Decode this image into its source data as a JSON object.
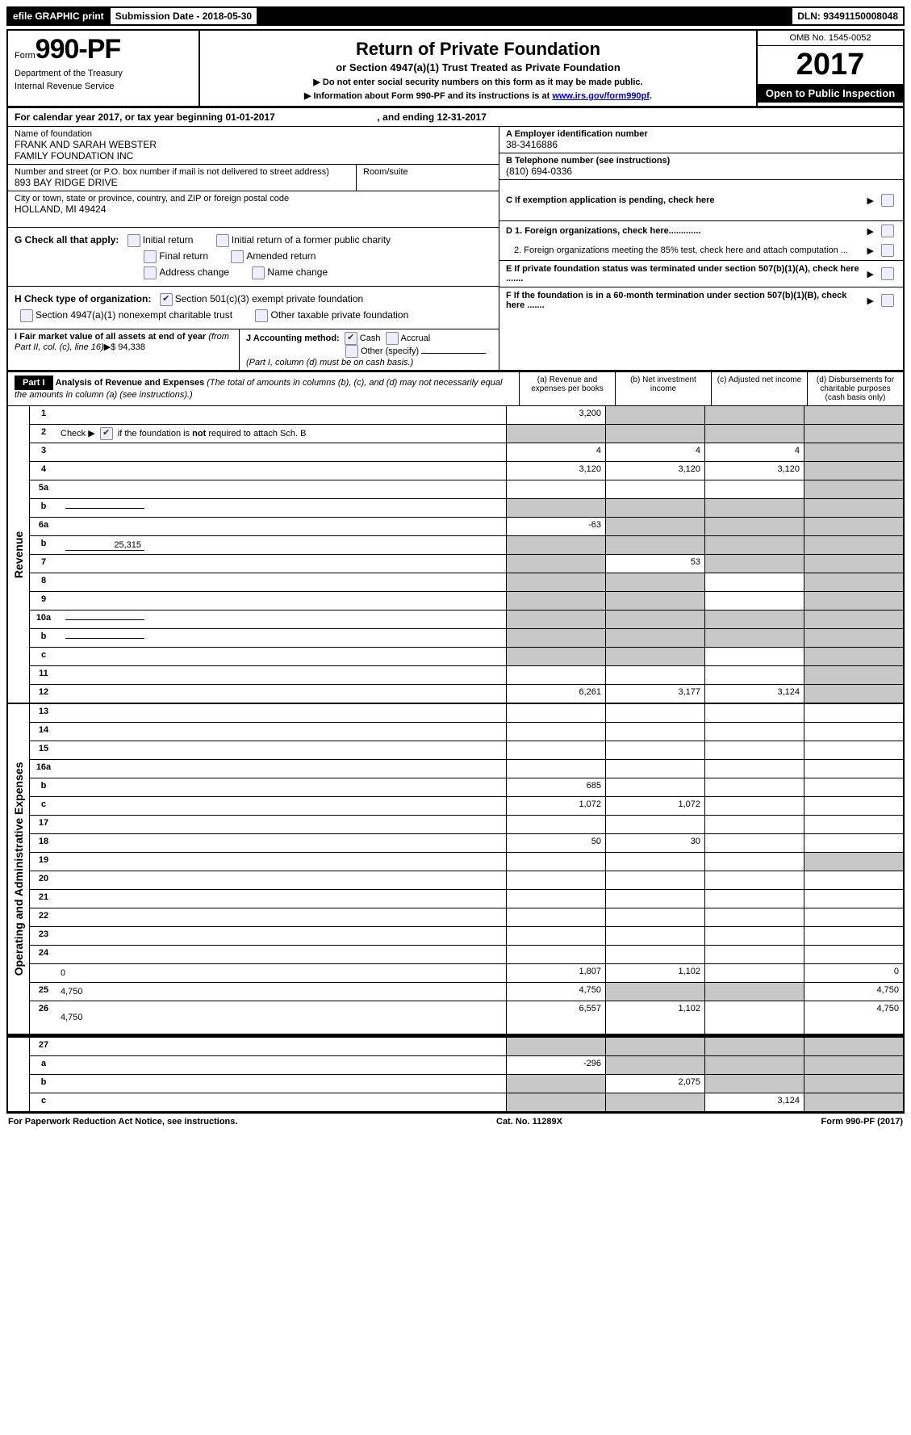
{
  "topbar": {
    "efile": "efile GRAPHIC print",
    "submission_label": "Submission Date - 2018-05-30",
    "dln_label": "DLN: 93491150008048"
  },
  "header": {
    "form_prefix": "Form",
    "form_number": "990-PF",
    "dept1": "Department of the Treasury",
    "dept2": "Internal Revenue Service",
    "title": "Return of Private Foundation",
    "subtitle": "or Section 4947(a)(1) Trust Treated as Private Foundation",
    "warn1": "▶ Do not enter social security numbers on this form as it may be made public.",
    "warn2_pre": "▶ Information about Form 990-PF and its instructions is at ",
    "warn2_link": "www.irs.gov/form990pf",
    "warn2_post": ".",
    "omb": "OMB No. 1545-0052",
    "year": "2017",
    "open": "Open to Public Inspection"
  },
  "cal_year": {
    "text_a": "For calendar year 2017, or tax year beginning 01-01-2017",
    "text_b": ", and ending 12-31-2017"
  },
  "entity": {
    "name_label": "Name of foundation",
    "name_val": "FRANK AND SARAH WEBSTER\nFAMILY FOUNDATION INC",
    "street_label": "Number and street (or P.O. box number if mail is not delivered to street address)",
    "street_val": "893 BAY RIDGE DRIVE",
    "room_label": "Room/suite",
    "city_label": "City or town, state or province, country, and ZIP or foreign postal code",
    "city_val": "HOLLAND, MI  49424"
  },
  "rightinfo": {
    "a_label": "A Employer identification number",
    "a_val": "38-3416886",
    "b_label": "B Telephone number (see instructions)",
    "b_val": "(810) 694-0336",
    "c_label": "C  If exemption application is pending, check here",
    "d1": "D 1. Foreign organizations, check here.............",
    "d2": "2. Foreign organizations meeting the 85% test, check here and attach computation ...",
    "e": "E  If private foundation status was terminated under section 507(b)(1)(A), check here .......",
    "f": "F  If the foundation is in a 60-month termination under section 507(b)(1)(B), check here ......."
  },
  "g": {
    "label": "G Check all that apply:",
    "opts": [
      "Initial return",
      "Initial return of a former public charity",
      "Final return",
      "Amended return",
      "Address change",
      "Name change"
    ]
  },
  "h": {
    "label": "H Check type of organization:",
    "opt1": "Section 501(c)(3) exempt private foundation",
    "opt2": "Section 4947(a)(1) nonexempt charitable trust",
    "opt3": "Other taxable private foundation"
  },
  "i": {
    "label": "I Fair market value of all assets at end of year ",
    "ital": "(from Part II, col. (c), line 16)",
    "arrow": "▶$",
    "val": "94,338"
  },
  "j": {
    "label": "J Accounting method:",
    "cash": "Cash",
    "accrual": "Accrual",
    "other": "Other (specify)",
    "note": "(Part I, column (d) must be on cash basis.)"
  },
  "part1": {
    "badge": "Part I",
    "title": "Analysis of Revenue and Expenses ",
    "note": "(The total of amounts in columns (b), (c), and (d) may not necessarily equal the amounts in column (a) (see instructions).)",
    "cols": {
      "a": "(a)    Revenue and expenses per books",
      "b": "(b)    Net investment income",
      "c": "(c)    Adjusted net income",
      "d": "(d)    Disbursements for charitable purposes (cash basis only)"
    }
  },
  "side_labels": {
    "revenue": "Revenue",
    "expenses": "Operating and Administrative Expenses"
  },
  "rows": [
    {
      "n": "1",
      "d": "",
      "a": "3,200",
      "b": "",
      "c": "",
      "grey": [
        "b",
        "c",
        "d"
      ]
    },
    {
      "n": "2",
      "d": "",
      "a": "",
      "b": "",
      "c": "",
      "grey": [
        "a",
        "b",
        "c",
        "d"
      ],
      "nocells": false,
      "checkbox": true
    },
    {
      "n": "3",
      "d": "",
      "a": "4",
      "b": "4",
      "c": "4",
      "grey": [
        "d"
      ]
    },
    {
      "n": "4",
      "d": "",
      "a": "3,120",
      "b": "3,120",
      "c": "3,120",
      "grey": [
        "d"
      ]
    },
    {
      "n": "5a",
      "d": "",
      "a": "",
      "b": "",
      "c": "",
      "grey": [
        "d"
      ]
    },
    {
      "n": "b",
      "d": "",
      "a": "",
      "b": "",
      "c": "",
      "grey": [
        "a",
        "b",
        "c",
        "d"
      ],
      "subinput": true
    },
    {
      "n": "6a",
      "d": "",
      "a": "-63",
      "b": "",
      "c": "",
      "grey": [
        "b",
        "c",
        "d"
      ]
    },
    {
      "n": "b",
      "d": "",
      "a": "",
      "b": "",
      "c": "",
      "grey": [
        "a",
        "b",
        "c",
        "d"
      ],
      "subinput": true,
      "subval": "25,315"
    },
    {
      "n": "7",
      "d": "",
      "a": "",
      "b": "53",
      "c": "",
      "grey": [
        "a",
        "c",
        "d"
      ]
    },
    {
      "n": "8",
      "d": "",
      "a": "",
      "b": "",
      "c": "",
      "grey": [
        "a",
        "b",
        "d"
      ]
    },
    {
      "n": "9",
      "d": "",
      "a": "",
      "b": "",
      "c": "",
      "grey": [
        "a",
        "b",
        "d"
      ]
    },
    {
      "n": "10a",
      "d": "",
      "a": "",
      "b": "",
      "c": "",
      "grey": [
        "a",
        "b",
        "c",
        "d"
      ],
      "subinput": true
    },
    {
      "n": "b",
      "d": "",
      "a": "",
      "b": "",
      "c": "",
      "grey": [
        "a",
        "b",
        "c",
        "d"
      ],
      "subinput": true
    },
    {
      "n": "c",
      "d": "",
      "a": "",
      "b": "",
      "c": "",
      "grey": [
        "a",
        "b",
        "d"
      ]
    },
    {
      "n": "11",
      "d": "",
      "a": "",
      "b": "",
      "c": "",
      "grey": [
        "d"
      ]
    },
    {
      "n": "12",
      "d": "",
      "a": "6,261",
      "b": "3,177",
      "c": "3,124",
      "grey": [
        "d"
      ],
      "bold": true
    }
  ],
  "rows2": [
    {
      "n": "13",
      "d": "",
      "a": "",
      "b": "",
      "c": ""
    },
    {
      "n": "14",
      "d": "",
      "a": "",
      "b": "",
      "c": ""
    },
    {
      "n": "15",
      "d": "",
      "a": "",
      "b": "",
      "c": ""
    },
    {
      "n": "16a",
      "d": "",
      "a": "",
      "b": "",
      "c": ""
    },
    {
      "n": "b",
      "d": "",
      "a": "685",
      "b": "",
      "c": ""
    },
    {
      "n": "c",
      "d": "",
      "a": "1,072",
      "b": "1,072",
      "c": ""
    },
    {
      "n": "17",
      "d": "",
      "a": "",
      "b": "",
      "c": ""
    },
    {
      "n": "18",
      "d": "",
      "a": "50",
      "b": "30",
      "c": ""
    },
    {
      "n": "19",
      "d": "",
      "a": "",
      "b": "",
      "c": "",
      "grey": [
        "d"
      ]
    },
    {
      "n": "20",
      "d": "",
      "a": "",
      "b": "",
      "c": ""
    },
    {
      "n": "21",
      "d": "",
      "a": "",
      "b": "",
      "c": ""
    },
    {
      "n": "22",
      "d": "",
      "a": "",
      "b": "",
      "c": ""
    },
    {
      "n": "23",
      "d": "",
      "a": "",
      "b": "",
      "c": ""
    },
    {
      "n": "24",
      "d": "",
      "a": "",
      "b": "",
      "c": "",
      "nocellborder": true
    },
    {
      "n": "",
      "d": "0",
      "a": "1,807",
      "b": "1,102",
      "c": ""
    },
    {
      "n": "25",
      "d": "4,750",
      "a": "4,750",
      "b": "",
      "c": "",
      "grey": [
        "b",
        "c"
      ]
    },
    {
      "n": "26",
      "d": "4,750",
      "a": "6,557",
      "b": "1,102",
      "c": "",
      "tall": true
    }
  ],
  "rows3": [
    {
      "n": "27",
      "d": "",
      "a": "",
      "b": "",
      "c": "",
      "grey": [
        "a",
        "b",
        "c",
        "d"
      ]
    },
    {
      "n": "a",
      "d": "",
      "a": "-296",
      "b": "",
      "c": "",
      "grey": [
        "b",
        "c",
        "d"
      ]
    },
    {
      "n": "b",
      "d": "",
      "a": "",
      "b": "2,075",
      "c": "",
      "grey": [
        "a",
        "c",
        "d"
      ]
    },
    {
      "n": "c",
      "d": "",
      "a": "",
      "b": "",
      "c": "3,124",
      "grey": [
        "a",
        "b",
        "d"
      ]
    }
  ],
  "footer": {
    "left": "For Paperwork Reduction Act Notice, see instructions.",
    "mid": "Cat. No. 11289X",
    "right": "Form 990-PF (2017)"
  },
  "colors": {
    "grey_cell": "#c8c8c8",
    "link": "#0000cc"
  }
}
